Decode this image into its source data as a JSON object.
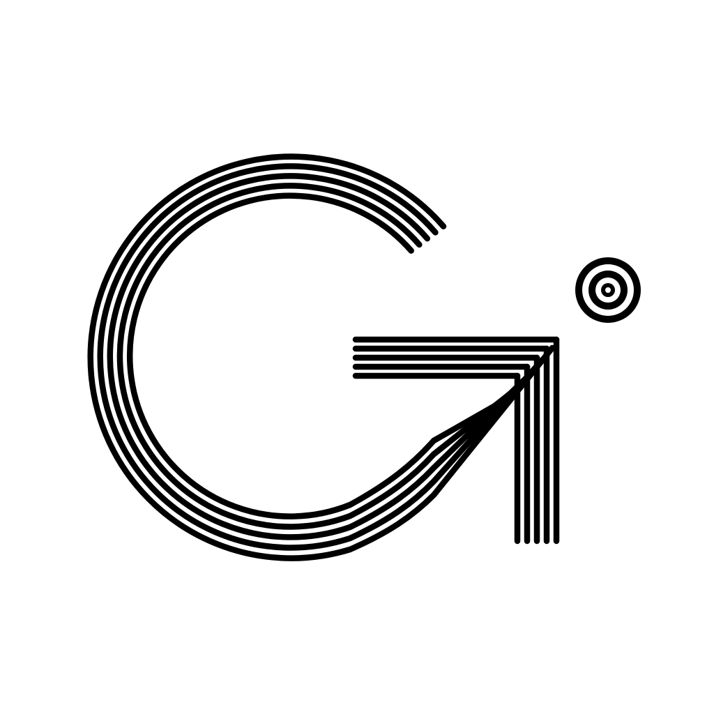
{
  "logo": {
    "monogram": "Gi",
    "stripe_count": 5,
    "dot_ring_count": 3,
    "ink_color": "#000000",
    "background_color": "#ffffff"
  }
}
